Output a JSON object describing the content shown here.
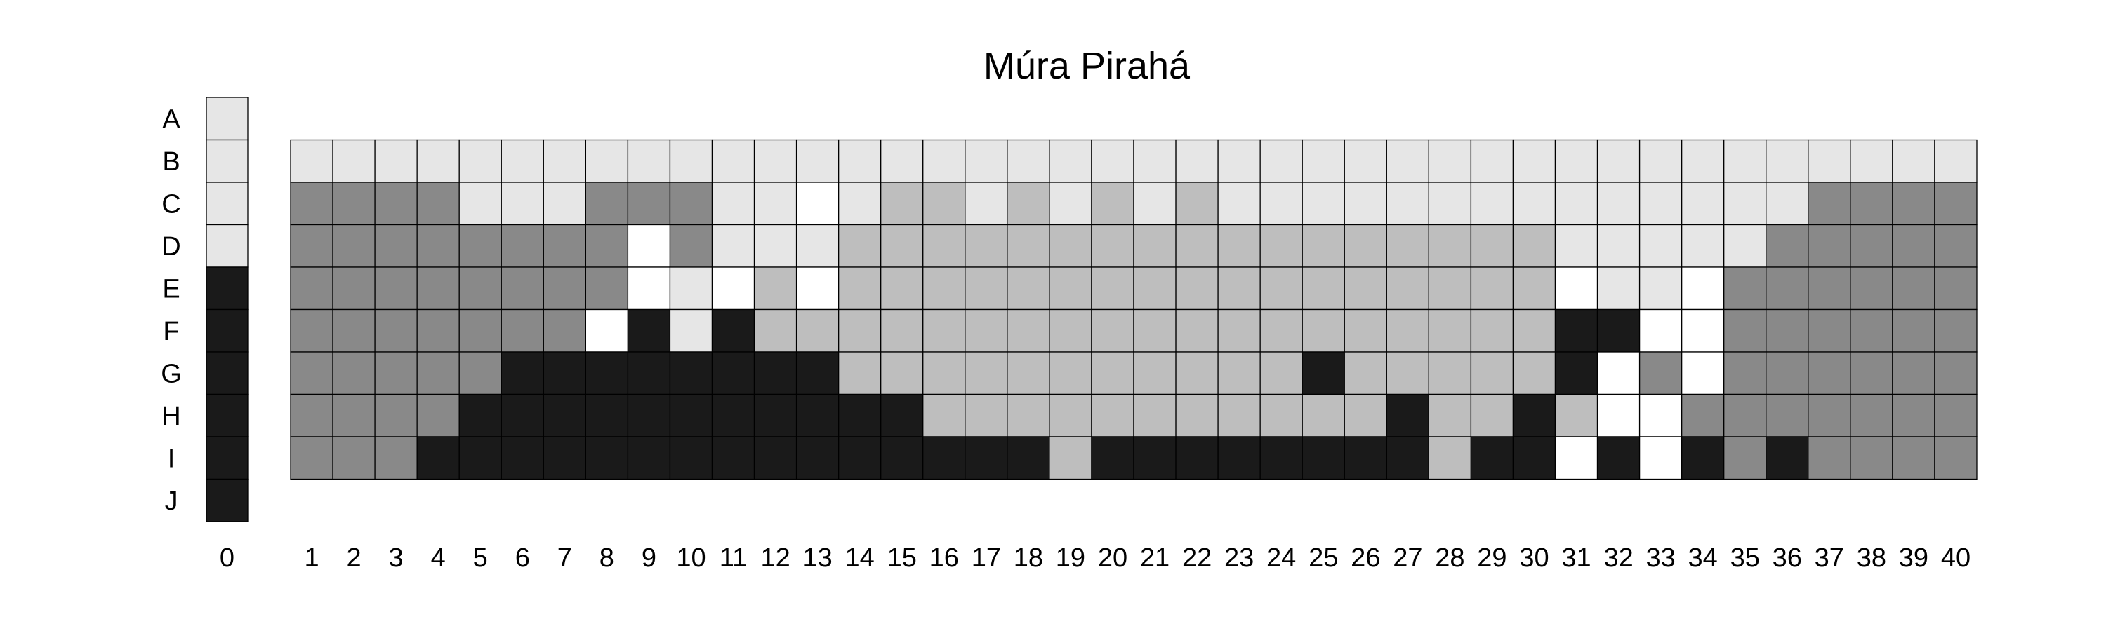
{
  "chart_data": {
    "type": "heatmap",
    "title": "Múra Pirahá",
    "xlabel": "",
    "ylabel": "",
    "row_labels": [
      "A",
      "B",
      "C",
      "D",
      "E",
      "F",
      "G",
      "H",
      "I",
      "J"
    ],
    "reference_column": {
      "label": "0",
      "values": [
        "L",
        "L",
        "L",
        "L",
        "K",
        "K",
        "K",
        "K",
        "K",
        "K"
      ]
    },
    "columns": [
      "1",
      "2",
      "3",
      "4",
      "5",
      "6",
      "7",
      "8",
      "9",
      "10",
      "11",
      "12",
      "13",
      "14",
      "15",
      "16",
      "17",
      "18",
      "19",
      "20",
      "21",
      "22",
      "23",
      "24",
      "25",
      "26",
      "27",
      "28",
      "29",
      "30",
      "31",
      "32",
      "33",
      "34",
      "35",
      "36",
      "37",
      "38",
      "39",
      "40"
    ],
    "grid_rows": [
      "B",
      "C",
      "D",
      "E",
      "F",
      "G",
      "H",
      "I"
    ],
    "grid": [
      "LLLLLLLLLLLLLLLLLLLLLLLLLLLLLLLLLLLLLLLL",
      "DDDDLLLDDDLLWLMMLMLMLMLLLLLLLLLLLLLLDDDD",
      "DDDDDDDDWDLLLMMMMMMMMMMMMMMMMMLLLLLDDDDD",
      "DDDDDDDDWLWMWMMMMMMMMMMMMMMMMMWLLWDDDDDD",
      "DDDDDDDWKLKMMMMMMMMMMMMMMMMMMMKKWWDDDDDD",
      "DDDDDKKKKKKKKMMMMMMMMMMMKMMMMMKWDWDDDDDD",
      "DDDDKKKKKKKKKKKMMMMMMMMMMMKMMKMWWDDDDDDD",
      "DDDKKKKKKKKKKKKKKKMKKKKKKKKMKKWKWKDKDDDD"
    ],
    "colors": {
      "L": "#e6e6e6",
      "M": "#bebebe",
      "D": "#898989",
      "K": "#1a1a1a",
      "W": "#ffffff"
    },
    "legend": "none"
  }
}
